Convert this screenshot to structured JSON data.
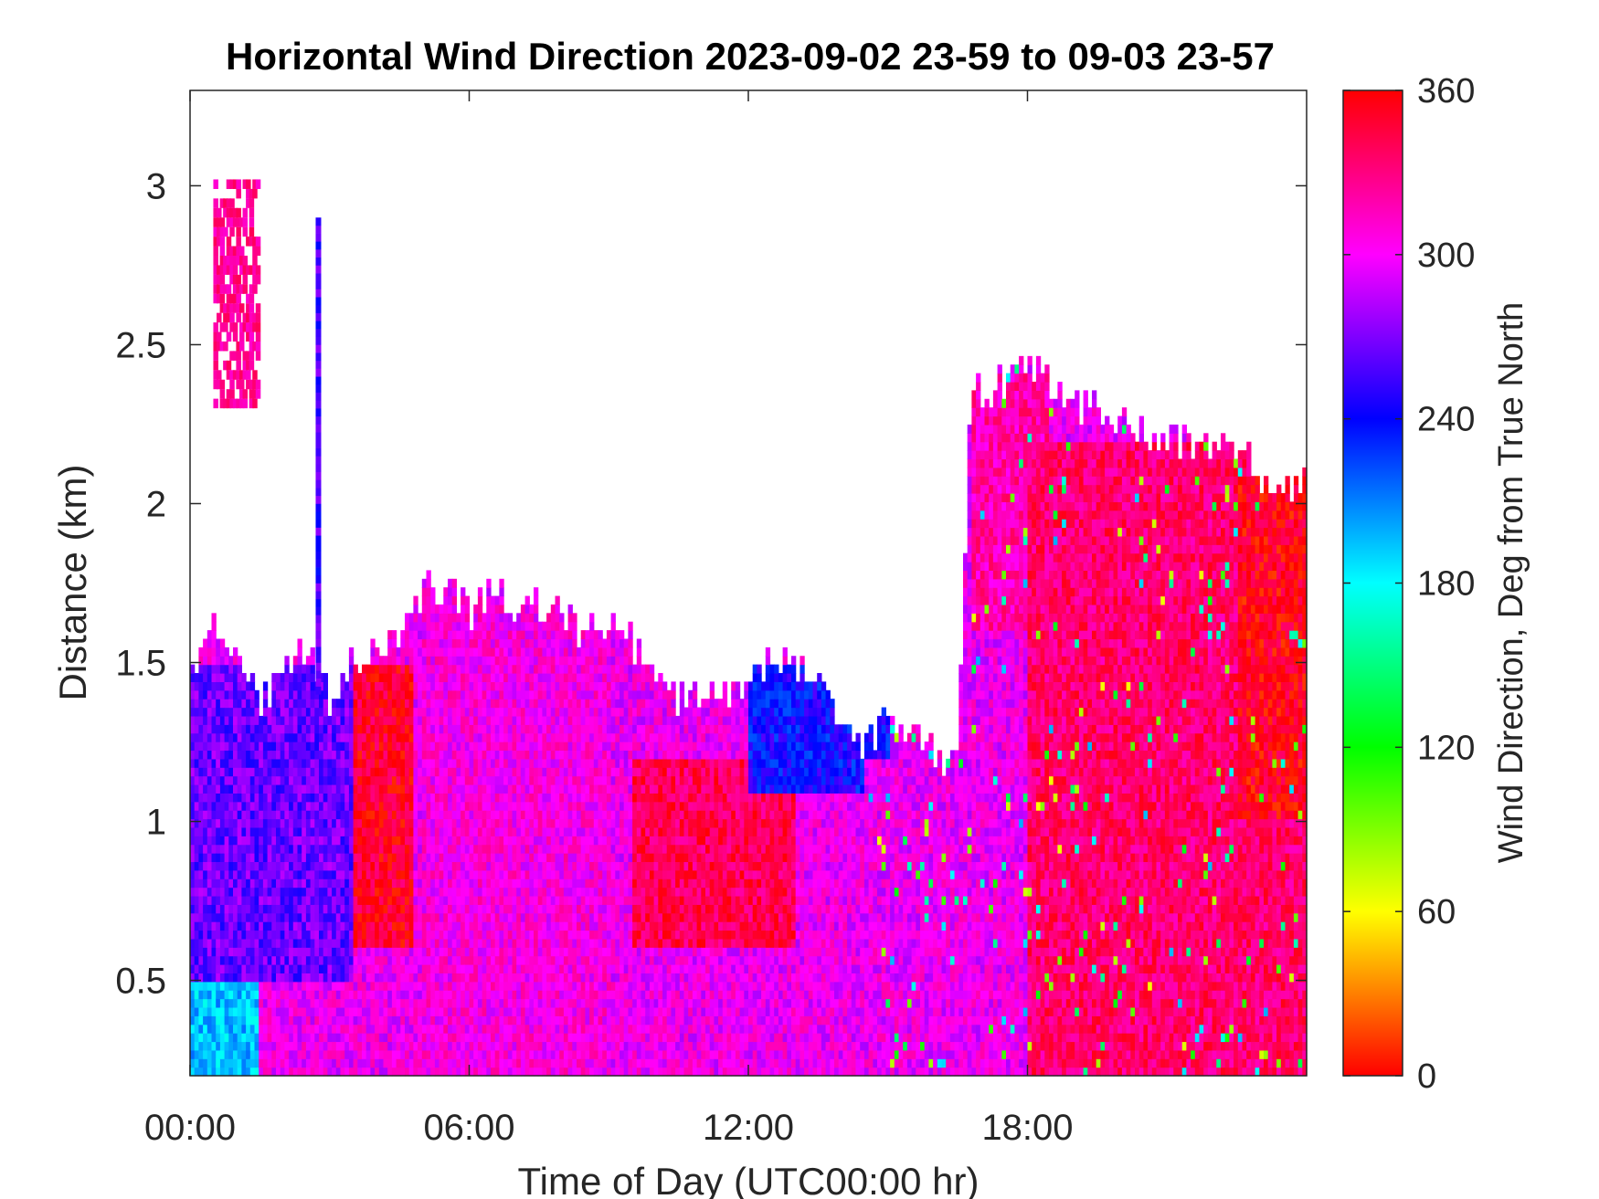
{
  "chart_data": {
    "type": "heatmap",
    "title": "Horizontal Wind Direction 2023-09-02 23-59 to 09-03 23-57",
    "xlabel": "Time of Day (UTC00:00 hr)",
    "ylabel": "Distance (km)",
    "colorbar_label": "Wind Direction, Deg from True North",
    "x_ticks": [
      "00:00",
      "06:00",
      "12:00",
      "18:00"
    ],
    "x_tick_values_hr": [
      0,
      6,
      12,
      18
    ],
    "xlim_hr": [
      0,
      24
    ],
    "y_ticks": [
      "0.5",
      "1",
      "1.5",
      "2",
      "2.5",
      "3"
    ],
    "y_tick_values": [
      0.5,
      1,
      1.5,
      2,
      2.5,
      3
    ],
    "ylim": [
      0.2,
      3.3
    ],
    "colorbar_ticks": [
      "0",
      "60",
      "120",
      "180",
      "240",
      "300",
      "360"
    ],
    "colorbar_tick_values": [
      0,
      60,
      120,
      180,
      240,
      300,
      360
    ],
    "colorbar_range": [
      0,
      360
    ],
    "colormap": "hsv",
    "data_ceiling_km": [
      [
        0.0,
        1.47
      ],
      [
        0.5,
        1.62
      ],
      [
        1.0,
        1.5
      ],
      [
        1.5,
        1.38
      ],
      [
        2.0,
        1.48
      ],
      [
        2.5,
        1.55
      ],
      [
        3.0,
        1.38
      ],
      [
        3.5,
        1.5
      ],
      [
        4.0,
        1.55
      ],
      [
        4.5,
        1.58
      ],
      [
        5.0,
        1.72
      ],
      [
        5.5,
        1.73
      ],
      [
        6.0,
        1.65
      ],
      [
        6.5,
        1.72
      ],
      [
        7.0,
        1.66
      ],
      [
        7.5,
        1.68
      ],
      [
        8.0,
        1.66
      ],
      [
        8.5,
        1.6
      ],
      [
        9.0,
        1.62
      ],
      [
        9.5,
        1.55
      ],
      [
        10.0,
        1.48
      ],
      [
        10.5,
        1.38
      ],
      [
        11.0,
        1.4
      ],
      [
        11.5,
        1.38
      ],
      [
        12.0,
        1.45
      ],
      [
        12.5,
        1.53
      ],
      [
        13.0,
        1.5
      ],
      [
        13.5,
        1.42
      ],
      [
        14.0,
        1.32
      ],
      [
        14.5,
        1.25
      ],
      [
        15.0,
        1.3
      ],
      [
        15.5,
        1.28
      ],
      [
        16.0,
        1.2
      ],
      [
        16.5,
        1.22
      ],
      [
        16.8,
        2.4
      ],
      [
        17.0,
        2.35
      ],
      [
        17.5,
        2.38
      ],
      [
        18.0,
        2.45
      ],
      [
        18.5,
        2.38
      ],
      [
        19.0,
        2.3
      ],
      [
        19.5,
        2.3
      ],
      [
        20.0,
        2.25
      ],
      [
        21.0,
        2.2
      ],
      [
        22.0,
        2.2
      ],
      [
        23.0,
        2.1
      ],
      [
        23.5,
        2.05
      ],
      [
        24.0,
        2.05
      ]
    ],
    "dominant_direction_deg": [
      {
        "hours": [
          0,
          1.5
        ],
        "km": [
          0.2,
          0.5
        ],
        "deg": 195
      },
      {
        "hours": [
          0,
          3.5
        ],
        "km": [
          0.5,
          1.5
        ],
        "deg": 265
      },
      {
        "hours": [
          0.5,
          1.5
        ],
        "km": [
          2.3,
          3.0
        ],
        "deg": 330
      },
      {
        "hours": [
          3.5,
          4.8
        ],
        "km": [
          0.6,
          1.5
        ],
        "deg": 350
      },
      {
        "hours": [
          5.0,
          9.0
        ],
        "km": [
          0.2,
          1.7
        ],
        "deg": 305
      },
      {
        "hours": [
          9.5,
          13.0
        ],
        "km": [
          0.6,
          1.2
        ],
        "deg": 340
      },
      {
        "hours": [
          12.0,
          15.0
        ],
        "km": [
          1.1,
          1.5
        ],
        "deg": 240
      },
      {
        "hours": [
          14.5,
          17.0
        ],
        "km": [
          0.2,
          1.2
        ],
        "deg": 300
      },
      {
        "hours": [
          16.8,
          18.5
        ],
        "km": [
          1.6,
          2.4
        ],
        "deg": 320
      },
      {
        "hours": [
          18.0,
          24.0
        ],
        "km": [
          0.2,
          2.2
        ],
        "deg": 335
      },
      {
        "hours": [
          22.5,
          24.0
        ],
        "km": [
          1.0,
          2.1
        ],
        "deg": 355
      }
    ]
  }
}
